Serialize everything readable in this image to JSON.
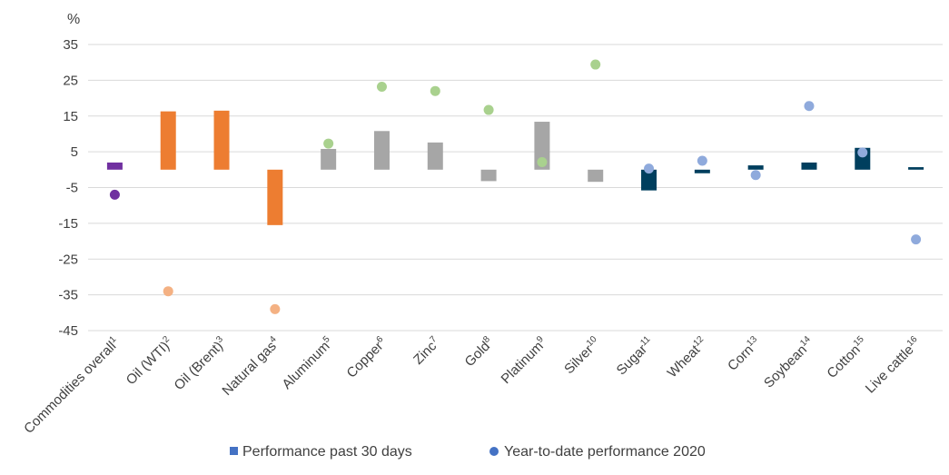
{
  "chart_data": {
    "type": "bar",
    "unit_label": "%",
    "ylim": [
      -45,
      35
    ],
    "yticks": [
      35,
      25,
      15,
      5,
      -5,
      -15,
      -25,
      -35,
      -45
    ],
    "grid": true,
    "legend_placement": "bottom",
    "categories": [
      {
        "name": "Commodities overall",
        "sup": "1"
      },
      {
        "name": "Oil (WTI)",
        "sup": "2"
      },
      {
        "name": "Oil (Brent)",
        "sup": "3"
      },
      {
        "name": "Natural gas",
        "sup": "4"
      },
      {
        "name": "Aluminum",
        "sup": "5"
      },
      {
        "name": "Copper",
        "sup": "6"
      },
      {
        "name": "Zinc",
        "sup": "7"
      },
      {
        "name": "Gold",
        "sup": "8"
      },
      {
        "name": "Platinum",
        "sup": "9"
      },
      {
        "name": "Silver",
        "sup": "10"
      },
      {
        "name": "Sugar",
        "sup": "11"
      },
      {
        "name": "Wheat",
        "sup": "12"
      },
      {
        "name": "Corn",
        "sup": "13"
      },
      {
        "name": "Soybean",
        "sup": "14"
      },
      {
        "name": "Cotton",
        "sup": "15"
      },
      {
        "name": "Live cattle",
        "sup": "16"
      }
    ],
    "series": [
      {
        "name": "Performance past 30 days",
        "kind": "bar",
        "legend_color": "#4472c4",
        "values": [
          2,
          16.3,
          16.5,
          -15.5,
          5.8,
          10.8,
          7.6,
          -3.2,
          13.4,
          -3.4,
          -5.8,
          -1.0,
          1.2,
          2.0,
          6.1,
          0.7
        ]
      },
      {
        "name": "Year-to-date performance 2020",
        "kind": "point",
        "legend_color": "#4472c4",
        "values": [
          -7.0,
          -34.0,
          null,
          -39.0,
          7.3,
          23.2,
          22.0,
          16.7,
          2.1,
          29.4,
          0.3,
          2.5,
          -1.5,
          17.8,
          4.8,
          -19.5
        ]
      }
    ],
    "colors": {
      "bar": [
        "#7030a0",
        "#ed7d31",
        "#ed7d31",
        "#ed7d31",
        "#a6a6a6",
        "#a6a6a6",
        "#a6a6a6",
        "#a6a6a6",
        "#a6a6a6",
        "#a6a6a6",
        "#003f5e",
        "#003f5e",
        "#003f5e",
        "#003f5e",
        "#003f5e",
        "#003f5e"
      ],
      "point": [
        "#7030a0",
        "#f4b183",
        "#f4b183",
        "#f4b183",
        "#a9d18e",
        "#a9d18e",
        "#a9d18e",
        "#a9d18e",
        "#a9d18e",
        "#a9d18e",
        "#8faadc",
        "#8faadc",
        "#8faadc",
        "#8faadc",
        "#8faadc",
        "#8faadc"
      ]
    }
  }
}
